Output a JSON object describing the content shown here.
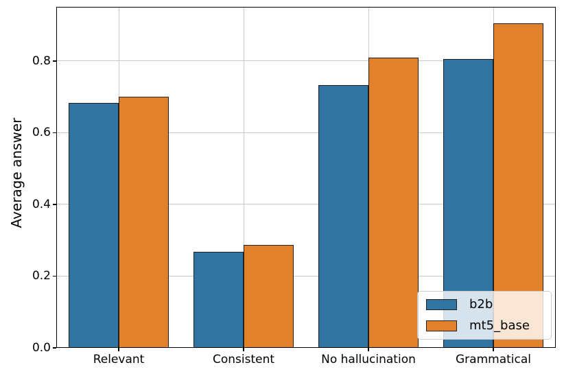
{
  "chart_data": {
    "type": "bar",
    "title": "",
    "xlabel": "",
    "ylabel": "Average answer",
    "categories": [
      "Relevant",
      "Consistent",
      "No hallucination",
      "Grammatical"
    ],
    "series": [
      {
        "name": "b2b",
        "color": "#3274a1",
        "values": [
          0.683,
          0.268,
          0.732,
          0.806
        ]
      },
      {
        "name": "mt5_base",
        "color": "#e1812c",
        "values": [
          0.7,
          0.287,
          0.81,
          0.906
        ]
      }
    ],
    "ylim": [
      0,
      0.951
    ],
    "yticks": [
      0.0,
      0.2,
      0.4,
      0.6,
      0.8
    ],
    "ytick_labels": [
      "0.0",
      "0.2",
      "0.4",
      "0.6",
      "0.8"
    ],
    "grid": true,
    "legend_position": "lower right",
    "colors": {
      "bar_edge": "#1f1f1f",
      "grid": "#c9c9c9",
      "spine": "#000000",
      "text": "#000000",
      "legend_bg": "rgba(255,255,255,0.8)",
      "legend_border": "#cccccc"
    }
  }
}
